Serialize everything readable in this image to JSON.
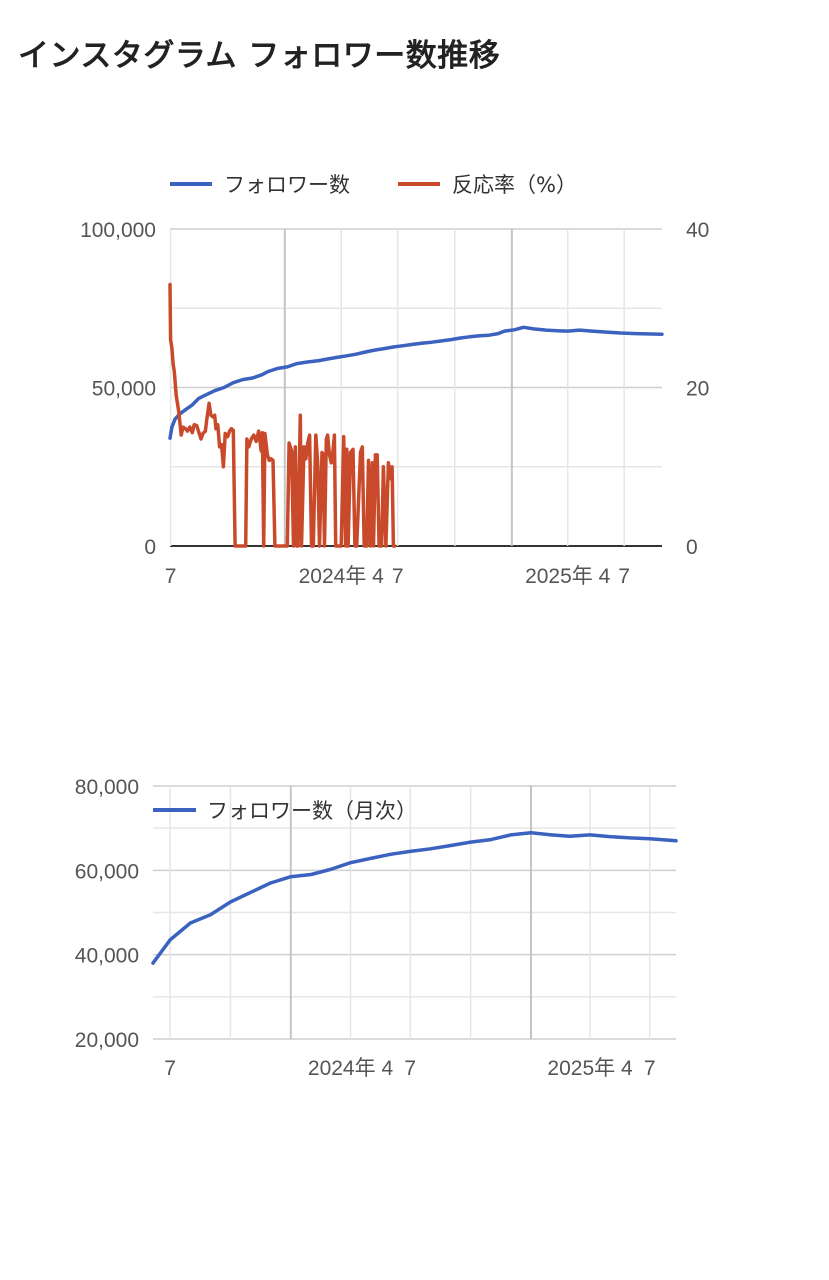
{
  "page": {
    "title": "インスタグラム フォロワー数推移"
  },
  "chart_data": [
    {
      "type": "line",
      "dual_axis": true,
      "x_range": [
        "2023-06-30",
        "2025-08-31"
      ],
      "x_ticks": [
        {
          "date": "2023-07-01",
          "label": "7"
        },
        {
          "date": "2024-01-01",
          "label": ""
        },
        {
          "date": "2024-04-01",
          "label": "2024年 4"
        },
        {
          "date": "2024-07-01",
          "label": "7"
        },
        {
          "date": "2024-10-01",
          "label": ""
        },
        {
          "date": "2025-01-01",
          "label": ""
        },
        {
          "date": "2025-04-01",
          "label": "2025年 4"
        },
        {
          "date": "2025-07-01",
          "label": "7"
        }
      ],
      "x_major_ticks": [
        "2024-01-01",
        "2025-01-01"
      ],
      "y_left": {
        "ylim": [
          0,
          100000
        ],
        "ticks": [
          0,
          50000,
          100000
        ],
        "labels": [
          "0",
          "50,000",
          "100,000"
        ]
      },
      "y_right": {
        "ylim": [
          0,
          40
        ],
        "ticks": [
          0,
          20,
          40
        ],
        "labels": [
          "0",
          "20",
          "40"
        ]
      },
      "legend": "top",
      "grid": true,
      "series": [
        {
          "name": "フォロワー数",
          "axis": "left",
          "color": "#3c62bf",
          "points": [
            [
              "2023-06-30",
              34000
            ],
            [
              "2023-07-03",
              37500
            ],
            [
              "2023-07-08",
              40000
            ],
            [
              "2023-07-15",
              41500
            ],
            [
              "2023-07-25",
              43000
            ],
            [
              "2023-08-05",
              44500
            ],
            [
              "2023-08-15",
              46500
            ],
            [
              "2023-08-25",
              47500
            ],
            [
              "2023-09-10",
              49000
            ],
            [
              "2023-09-25",
              50000
            ],
            [
              "2023-10-10",
              51500
            ],
            [
              "2023-10-25",
              52500
            ],
            [
              "2023-11-10",
              53000
            ],
            [
              "2023-11-25",
              54000
            ],
            [
              "2023-12-05",
              55000
            ],
            [
              "2023-12-20",
              56000
            ],
            [
              "2024-01-05",
              56500
            ],
            [
              "2024-01-20",
              57500
            ],
            [
              "2024-02-05",
              58000
            ],
            [
              "2024-02-25",
              58500
            ],
            [
              "2024-03-10",
              59000
            ],
            [
              "2024-03-25",
              59500
            ],
            [
              "2024-04-10",
              60000
            ],
            [
              "2024-04-25",
              60500
            ],
            [
              "2024-05-10",
              61200
            ],
            [
              "2024-05-25",
              61800
            ],
            [
              "2024-06-10",
              62300
            ],
            [
              "2024-06-25",
              62800
            ],
            [
              "2024-07-10",
              63200
            ],
            [
              "2024-07-25",
              63600
            ],
            [
              "2024-08-10",
              64000
            ],
            [
              "2024-08-25",
              64300
            ],
            [
              "2024-09-10",
              64700
            ],
            [
              "2024-09-25",
              65100
            ],
            [
              "2024-10-10",
              65600
            ],
            [
              "2024-10-25",
              66000
            ],
            [
              "2024-11-10",
              66300
            ],
            [
              "2024-11-25",
              66500
            ],
            [
              "2024-12-10",
              67000
            ],
            [
              "2024-12-20",
              67800
            ],
            [
              "2025-01-05",
              68200
            ],
            [
              "2025-01-20",
              69000
            ],
            [
              "2025-02-05",
              68500
            ],
            [
              "2025-02-25",
              68100
            ],
            [
              "2025-03-15",
              67900
            ],
            [
              "2025-04-01",
              67800
            ],
            [
              "2025-04-20",
              68100
            ],
            [
              "2025-05-10",
              67800
            ],
            [
              "2025-05-31",
              67500
            ],
            [
              "2025-06-25",
              67200
            ],
            [
              "2025-07-20",
              67000
            ],
            [
              "2025-08-31",
              66800
            ]
          ]
        },
        {
          "name": "反応率（%）",
          "axis": "right",
          "color": "#c94a2a",
          "points": [
            [
              "2023-06-30",
              33
            ],
            [
              "2023-07-01",
              26
            ],
            [
              "2023-07-03",
              25
            ],
            [
              "2023-07-05",
              23
            ],
            [
              "2023-07-07",
              22
            ],
            [
              "2023-07-10",
              19
            ],
            [
              "2023-07-14",
              17
            ],
            [
              "2023-07-18",
              14
            ],
            [
              "2023-07-21",
              15
            ],
            [
              "2023-07-25",
              14.8
            ],
            [
              "2023-07-28",
              14.5
            ],
            [
              "2023-08-01",
              15
            ],
            [
              "2023-08-05",
              14.3
            ],
            [
              "2023-08-08",
              15.3
            ],
            [
              "2023-08-12",
              15.2
            ],
            [
              "2023-08-15",
              14.5
            ],
            [
              "2023-08-19",
              13.5
            ],
            [
              "2023-08-22",
              14.2
            ],
            [
              "2023-08-26",
              14.5
            ],
            [
              "2023-08-28",
              15.8
            ],
            [
              "2023-09-01",
              18
            ],
            [
              "2023-09-04",
              16.5
            ],
            [
              "2023-09-07",
              16.3
            ],
            [
              "2023-09-10",
              16.5
            ],
            [
              "2023-09-12",
              14.8
            ],
            [
              "2023-09-15",
              15.3
            ],
            [
              "2023-09-18",
              12.5
            ],
            [
              "2023-09-21",
              12.8
            ],
            [
              "2023-09-24",
              10
            ],
            [
              "2023-09-27",
              14.2
            ],
            [
              "2023-10-01",
              13.8
            ],
            [
              "2023-10-04",
              14.5
            ],
            [
              "2023-10-07",
              14.8
            ],
            [
              "2023-10-10",
              14.6
            ],
            [
              "2023-10-13",
              0
            ],
            [
              "2023-10-30",
              0
            ],
            [
              "2023-11-01",
              13.5
            ],
            [
              "2023-11-04",
              12.5
            ],
            [
              "2023-11-08",
              13.5
            ],
            [
              "2023-11-12",
              14
            ],
            [
              "2023-11-16",
              13.2
            ],
            [
              "2023-11-20",
              14.5
            ],
            [
              "2023-11-24",
              12
            ],
            [
              "2023-11-26",
              14.3
            ],
            [
              "2023-11-28",
              0
            ],
            [
              "2023-11-30",
              14.2
            ],
            [
              "2023-12-04",
              11.5
            ],
            [
              "2023-12-07",
              10.8
            ],
            [
              "2023-12-10",
              11
            ],
            [
              "2023-12-13",
              10.8
            ],
            [
              "2023-12-16",
              0
            ],
            [
              "2024-01-05",
              0
            ],
            [
              "2024-01-08",
              13
            ],
            [
              "2024-01-12",
              12
            ],
            [
              "2024-01-15",
              0
            ],
            [
              "2024-01-18",
              12.5
            ],
            [
              "2024-01-20",
              0
            ],
            [
              "2024-01-22",
              0
            ],
            [
              "2024-01-26",
              16.5
            ],
            [
              "2024-01-28",
              0
            ],
            [
              "2024-02-01",
              12.5
            ],
            [
              "2024-02-04",
              11
            ],
            [
              "2024-02-07",
              13
            ],
            [
              "2024-02-10",
              14
            ],
            [
              "2024-02-13",
              0
            ],
            [
              "2024-02-16",
              0
            ],
            [
              "2024-02-20",
              14
            ],
            [
              "2024-02-23",
              10.5
            ],
            [
              "2024-02-26",
              0
            ],
            [
              "2024-03-01",
              11.8
            ],
            [
              "2024-03-03",
              11.5
            ],
            [
              "2024-03-05",
              0
            ],
            [
              "2024-03-08",
              13.5
            ],
            [
              "2024-03-10",
              14
            ],
            [
              "2024-03-13",
              11.5
            ],
            [
              "2024-03-16",
              10.5
            ],
            [
              "2024-03-18",
              11.5
            ],
            [
              "2024-03-21",
              14
            ],
            [
              "2024-03-23",
              0
            ],
            [
              "2024-04-01",
              0
            ],
            [
              "2024-04-05",
              13.8
            ],
            [
              "2024-04-08",
              0
            ],
            [
              "2024-04-10",
              12.2
            ],
            [
              "2024-04-12",
              0
            ],
            [
              "2024-04-16",
              11.8
            ],
            [
              "2024-04-20",
              12.2
            ],
            [
              "2024-04-23",
              0
            ],
            [
              "2024-04-26",
              0
            ],
            [
              "2024-05-02",
              11.8
            ],
            [
              "2024-05-05",
              12.5
            ],
            [
              "2024-05-08",
              0
            ],
            [
              "2024-05-12",
              0
            ],
            [
              "2024-05-15",
              10.8
            ],
            [
              "2024-05-18",
              0
            ],
            [
              "2024-05-21",
              10.5
            ],
            [
              "2024-05-23",
              0
            ],
            [
              "2024-05-26",
              11.5
            ],
            [
              "2024-05-29",
              11.5
            ],
            [
              "2024-06-01",
              0
            ],
            [
              "2024-06-05",
              0
            ],
            [
              "2024-06-08",
              10
            ],
            [
              "2024-06-12",
              0
            ],
            [
              "2024-06-16",
              10.5
            ],
            [
              "2024-06-19",
              8.5
            ],
            [
              "2024-06-22",
              10
            ],
            [
              "2024-06-24",
              0
            ],
            [
              "2024-06-26",
              0
            ]
          ]
        }
      ]
    },
    {
      "type": "line",
      "x_range": [
        "2023-06-05",
        "2025-08-10"
      ],
      "x_ticks": [
        {
          "date": "2023-07-01",
          "label": "7"
        },
        {
          "date": "2023-10-01",
          "label": ""
        },
        {
          "date": "2024-01-01",
          "label": ""
        },
        {
          "date": "2024-04-01",
          "label": "2024年 4"
        },
        {
          "date": "2024-07-01",
          "label": "7"
        },
        {
          "date": "2024-10-01",
          "label": ""
        },
        {
          "date": "2025-01-01",
          "label": ""
        },
        {
          "date": "2025-04-01",
          "label": "2025年 4"
        },
        {
          "date": "2025-07-01",
          "label": "7"
        }
      ],
      "x_major_ticks": [
        "2024-01-01",
        "2025-01-01"
      ],
      "y_left": {
        "ylim": [
          20000,
          80000
        ],
        "ticks": [
          20000,
          40000,
          60000,
          80000
        ],
        "labels": [
          "20,000",
          "40,000",
          "60,000",
          "80,000"
        ]
      },
      "legend": "top-left",
      "grid": true,
      "series": [
        {
          "name": "フォロワー数（月次）",
          "color": "#3c62bf",
          "points": [
            [
              "2023-06-05",
              38000
            ],
            [
              "2023-07-01",
              43500
            ],
            [
              "2023-08-01",
              47500
            ],
            [
              "2023-09-01",
              49500
            ],
            [
              "2023-10-01",
              52500
            ],
            [
              "2023-11-01",
              54800
            ],
            [
              "2023-12-01",
              57000
            ],
            [
              "2024-01-01",
              58500
            ],
            [
              "2024-02-01",
              59000
            ],
            [
              "2024-03-01",
              60200
            ],
            [
              "2024-04-01",
              61800
            ],
            [
              "2024-05-01",
              62800
            ],
            [
              "2024-06-01",
              63800
            ],
            [
              "2024-07-01",
              64500
            ],
            [
              "2024-08-01",
              65100
            ],
            [
              "2024-09-01",
              65900
            ],
            [
              "2024-10-01",
              66700
            ],
            [
              "2024-11-01",
              67300
            ],
            [
              "2024-12-01",
              68400
            ],
            [
              "2025-01-01",
              68900
            ],
            [
              "2025-02-01",
              68400
            ],
            [
              "2025-03-01",
              68100
            ],
            [
              "2025-04-01",
              68400
            ],
            [
              "2025-05-01",
              68000
            ],
            [
              "2025-06-01",
              67700
            ],
            [
              "2025-07-01",
              67500
            ],
            [
              "2025-08-10",
              67000
            ]
          ]
        }
      ]
    }
  ]
}
